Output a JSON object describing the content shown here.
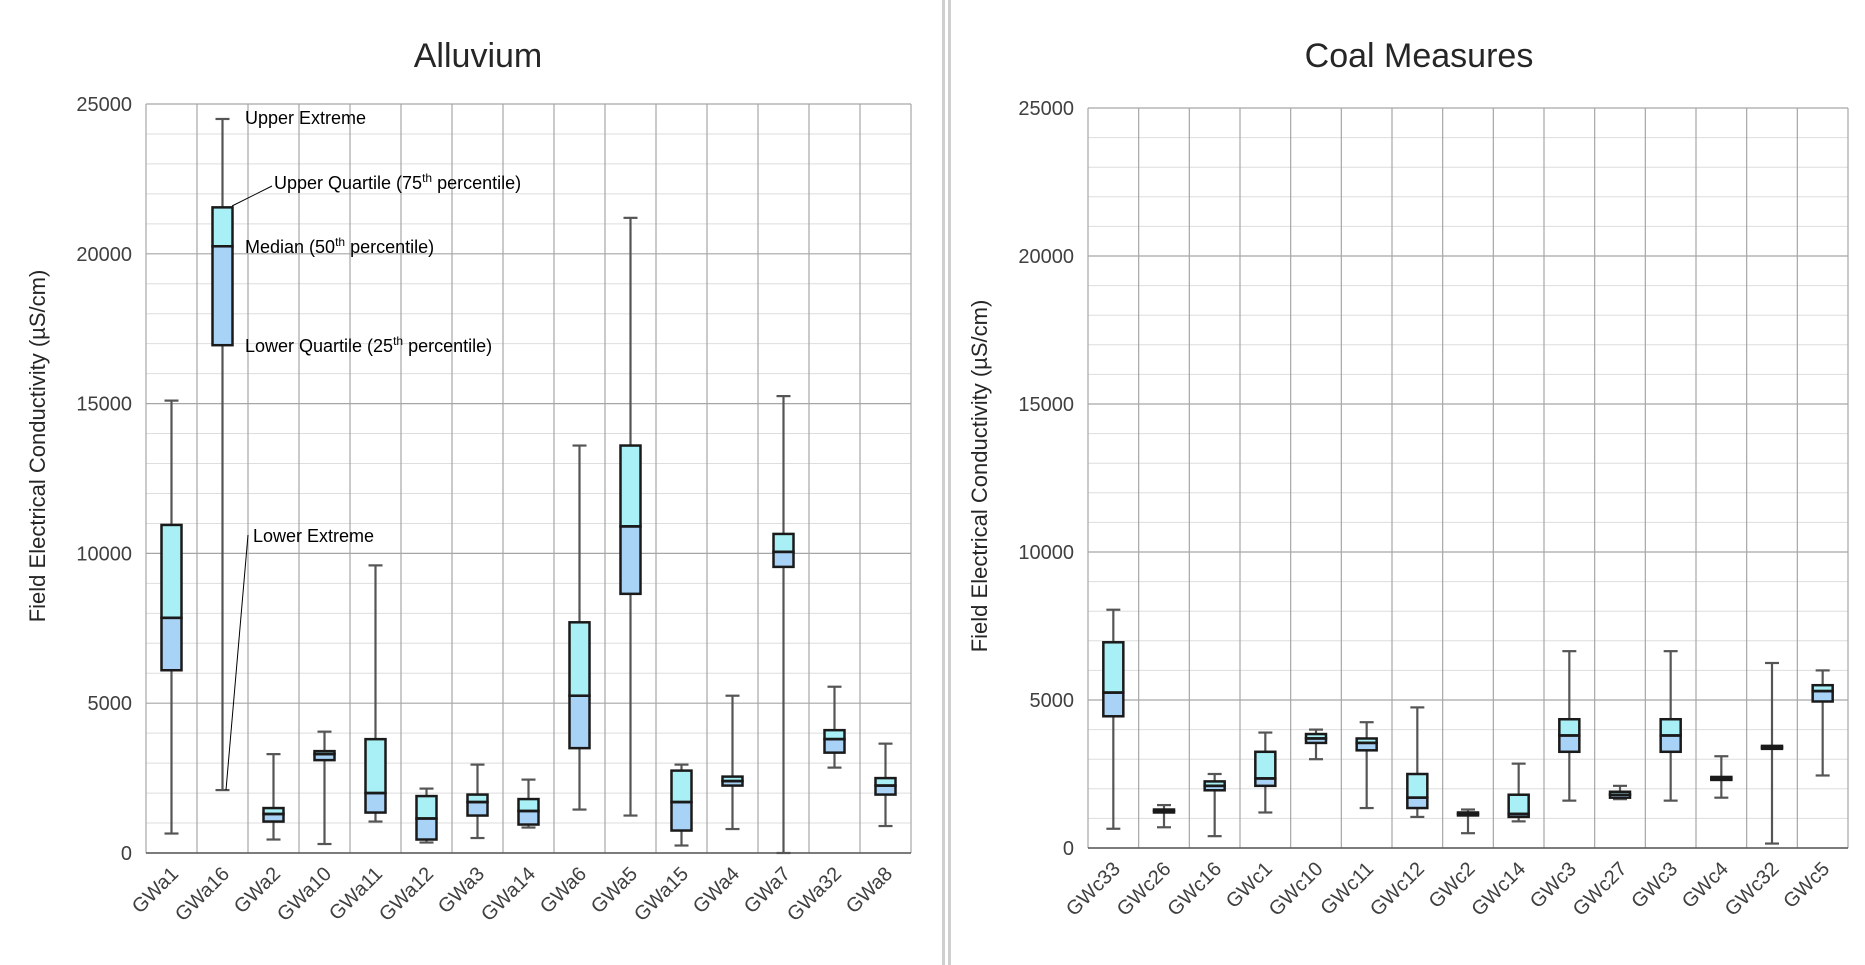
{
  "chart_data": [
    {
      "type": "box",
      "title": "Alluvium",
      "xlabel": "",
      "ylabel": "Field Electrical Conductivity (µS/cm)",
      "ylim": [
        0,
        25000
      ],
      "yticks": [
        0,
        5000,
        10000,
        15000,
        20000,
        25000
      ],
      "grid": true,
      "colors": {
        "upper_box": "#a8f0f5",
        "lower_box": "#a9d2f7",
        "outline": "#1a1a1a",
        "whisker": "#555555"
      },
      "categories": [
        "GWa1",
        "GWa16",
        "GWa2",
        "GWa10",
        "GWa11",
        "GWa12",
        "GWa3",
        "GWa14",
        "GWa6",
        "GWa5",
        "GWa15",
        "GWa4",
        "GWa7",
        "GWa32",
        "GWa8"
      ],
      "boxes": [
        {
          "min": 650,
          "q1": 6100,
          "median": 7850,
          "q3": 10950,
          "max": 15100
        },
        {
          "min": 2100,
          "q1": 16950,
          "median": 20250,
          "q3": 21550,
          "max": 24500
        },
        {
          "min": 450,
          "q1": 1050,
          "median": 1300,
          "q3": 1500,
          "max": 3300
        },
        {
          "min": 300,
          "q1": 3100,
          "median": 3300,
          "q3": 3400,
          "max": 4050
        },
        {
          "min": 1050,
          "q1": 1350,
          "median": 2000,
          "q3": 3800,
          "max": 9600
        },
        {
          "min": 350,
          "q1": 450,
          "median": 1150,
          "q3": 1900,
          "max": 2150
        },
        {
          "min": 500,
          "q1": 1250,
          "median": 1700,
          "q3": 1950,
          "max": 2950
        },
        {
          "min": 850,
          "q1": 950,
          "median": 1400,
          "q3": 1800,
          "max": 2450
        },
        {
          "min": 1450,
          "q1": 3500,
          "median": 5250,
          "q3": 7700,
          "max": 13600
        },
        {
          "min": 1250,
          "q1": 8650,
          "median": 10900,
          "q3": 13600,
          "max": 21200
        },
        {
          "min": 250,
          "q1": 750,
          "median": 1700,
          "q3": 2750,
          "max": 2950
        },
        {
          "min": 800,
          "q1": 2250,
          "median": 2400,
          "q3": 2550,
          "max": 5250
        },
        {
          "min": 0,
          "q1": 9550,
          "median": 10050,
          "q3": 10650,
          "max": 15250
        },
        {
          "min": 2850,
          "q1": 3350,
          "median": 3800,
          "q3": 4100,
          "max": 5550
        },
        {
          "min": 900,
          "q1": 1950,
          "median": 2250,
          "q3": 2500,
          "max": 3650
        }
      ],
      "annotations": {
        "upper_extreme": "Upper Extreme",
        "upper_quartile_pre": "Upper Quartile (75",
        "upper_quartile_sup": "th",
        "upper_quartile_post": " percentile)",
        "median_pre": "Median (50",
        "median_sup": "th",
        "median_post": " percentile)",
        "lower_quartile_pre": "Lower Quartile (25",
        "lower_quartile_sup": "th",
        "lower_quartile_post": " percentile)",
        "lower_extreme": "Lower Extreme"
      }
    },
    {
      "type": "box",
      "title": "Coal Measures",
      "xlabel": "",
      "ylabel": "Field Electrical Conductivity (µS/cm)",
      "ylim": [
        0,
        25000
      ],
      "yticks": [
        0,
        5000,
        10000,
        15000,
        20000,
        25000
      ],
      "grid": true,
      "colors": {
        "upper_box": "#a8f0f5",
        "lower_box": "#a9d2f7",
        "outline": "#1a1a1a",
        "whisker": "#555555"
      },
      "categories": [
        "GWc33",
        "GWc26",
        "GWc16",
        "GWc1",
        "GWc10",
        "GWc11",
        "GWc12",
        "GWc2",
        "GWc14",
        "GWc3",
        "GWc27",
        "GWc3",
        "GWc4",
        "GWc32",
        "GWc5"
      ],
      "boxes": [
        {
          "min": 650,
          "q1": 4450,
          "median": 5250,
          "q3": 6950,
          "max": 8050
        },
        {
          "min": 700,
          "q1": 1200,
          "median": 1250,
          "q3": 1300,
          "max": 1450
        },
        {
          "min": 400,
          "q1": 1950,
          "median": 2100,
          "q3": 2250,
          "max": 2500
        },
        {
          "min": 1200,
          "q1": 2100,
          "median": 2350,
          "q3": 3250,
          "max": 3900
        },
        {
          "min": 3000,
          "q1": 3550,
          "median": 3700,
          "q3": 3850,
          "max": 4000
        },
        {
          "min": 1350,
          "q1": 3300,
          "median": 3550,
          "q3": 3700,
          "max": 4250
        },
        {
          "min": 1050,
          "q1": 1350,
          "median": 1700,
          "q3": 2500,
          "max": 4750
        },
        {
          "min": 500,
          "q1": 1100,
          "median": 1150,
          "q3": 1200,
          "max": 1300
        },
        {
          "min": 900,
          "q1": 1050,
          "median": 1150,
          "q3": 1800,
          "max": 2850
        },
        {
          "min": 1600,
          "q1": 3250,
          "median": 3800,
          "q3": 4350,
          "max": 6650
        },
        {
          "min": 1650,
          "q1": 1700,
          "median": 1800,
          "q3": 1900,
          "max": 2100
        },
        {
          "min": 1600,
          "q1": 3250,
          "median": 3800,
          "q3": 4350,
          "max": 6650
        },
        {
          "min": 1700,
          "q1": 2300,
          "median": 2350,
          "q3": 2400,
          "max": 3100
        },
        {
          "min": 150,
          "q1": 3350,
          "median": 3400,
          "q3": 3450,
          "max": 6250
        },
        {
          "min": 2450,
          "q1": 4950,
          "median": 5300,
          "q3": 5500,
          "max": 6000
        }
      ]
    }
  ]
}
